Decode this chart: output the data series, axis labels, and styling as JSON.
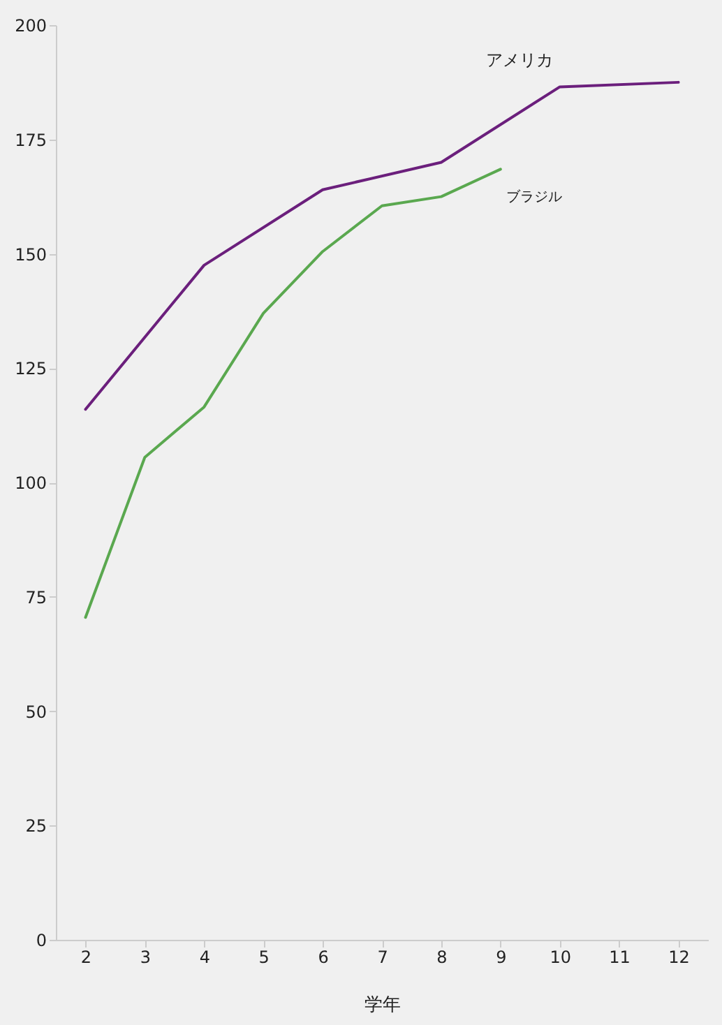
{
  "chart_data": {
    "type": "line",
    "xlabel": "学年",
    "xlim": [
      1.5,
      12.5
    ],
    "xticks": [
      2,
      3,
      4,
      5,
      6,
      7,
      8,
      9,
      10,
      11,
      12
    ],
    "ylim": [
      0,
      200
    ],
    "yticks": [
      0,
      25,
      50,
      75,
      100,
      125,
      150,
      175,
      200
    ],
    "grid": false,
    "legend": false,
    "series": [
      {
        "name": "アメリカ",
        "color": "#6b1f7c",
        "x": [
          2,
          4,
          6,
          8,
          10,
          12
        ],
        "values": [
          116,
          147.5,
          164,
          170,
          186.5,
          187.5
        ]
      },
      {
        "name": "ブラジル",
        "color": "#5aa84f",
        "x": [
          2,
          3,
          4,
          5,
          6,
          7,
          8,
          9
        ],
        "values": [
          70.5,
          105.5,
          116.5,
          137,
          150.5,
          160.5,
          162.5,
          168.5
        ]
      }
    ]
  }
}
